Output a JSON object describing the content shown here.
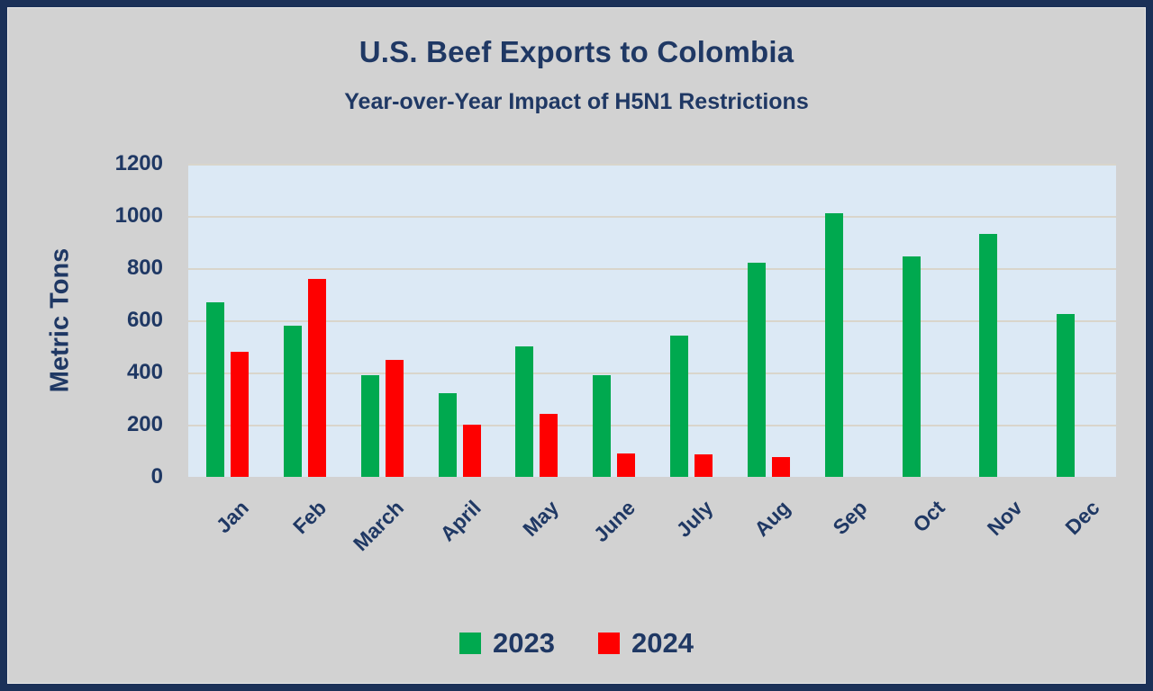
{
  "frame": {
    "border_color": "#1b3158",
    "background_color": "#d2d2d2"
  },
  "chart_data": {
    "type": "bar",
    "title": "U.S. Beef Exports to Colombia",
    "subtitle": "Year-over-Year Impact of H5N1 Restrictions",
    "xlabel": "",
    "ylabel": "Metric Tons",
    "ylim": [
      0,
      1200
    ],
    "yticks": [
      0,
      200,
      400,
      600,
      800,
      1000,
      1200
    ],
    "grid": true,
    "gridline_color": "#d9d5cb",
    "plot_background": "#dce9f5",
    "text_color": "#1f3864",
    "legend_position": "bottom",
    "categories": [
      "Jan",
      "Feb",
      "March",
      "April",
      "May",
      "June",
      "July",
      "Aug",
      "Sep",
      "Oct",
      "Nov",
      "Dec"
    ],
    "series": [
      {
        "name": "2023",
        "color": "#00a94f",
        "values": [
          670,
          580,
          390,
          320,
          500,
          390,
          540,
          820,
          1010,
          845,
          930,
          625
        ]
      },
      {
        "name": "2024",
        "color": "#fe0000",
        "values": [
          480,
          760,
          450,
          200,
          240,
          90,
          85,
          75,
          0,
          0,
          0,
          0
        ]
      }
    ]
  }
}
